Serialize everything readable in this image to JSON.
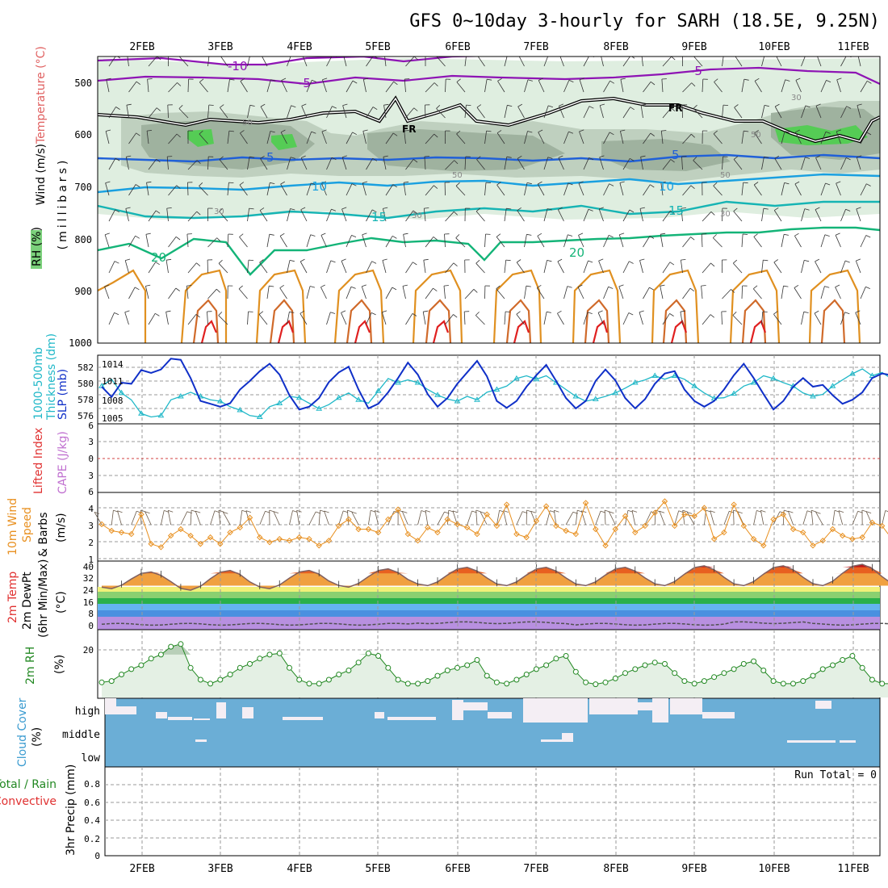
{
  "title": "GFS 0~10day 3-hourly for SARH (18.5E, 9.25N)",
  "date_labels": [
    "2FEB",
    "3FEB",
    "4FEB",
    "5FEB",
    "6FEB",
    "7FEB",
    "8FEB",
    "9FEB",
    "10FEB",
    "11FEB"
  ],
  "colors": {
    "grid": "#9a9a9a",
    "frame": "#000000",
    "rh_fill": "#dfeee0",
    "rh_dark": "#9fb29f",
    "rh_green": "#55cc55",
    "temp_purple": "#8e14b4",
    "temp_fr": "#000000",
    "temp_blue": "#2060d8",
    "temp_lblue": "#1aa0e0",
    "temp_teal": "#16b4b4",
    "temp_green": "#14b478",
    "temp_orange": "#e09020",
    "temp_red": "#e02020",
    "slp_line": "#1030c8",
    "thk_line": "#20b8c8",
    "li_zero": "#d04040",
    "wind_line": "#e89020",
    "rh2m_line": "#228822",
    "rh2m_fill": "#e4f0e4",
    "cloud_fill": "#6baed6",
    "cloud_clear": "#f4eef4"
  },
  "panels": {
    "profile": {
      "ylabel_1": "Wind (m/s)",
      "ylabel_2": "Temperature (°C)",
      "ylabel_3": "RH (%)",
      "ylabel_unit": "(millibars)",
      "yticks": [
        "500",
        "600",
        "700",
        "800",
        "900",
        "1000"
      ],
      "contour_labels": [
        "-10",
        "-5",
        "-5",
        "FR",
        "FR",
        "5",
        "5",
        "10",
        "10",
        "15",
        "15",
        "20",
        "20",
        "50",
        "50",
        "50",
        "50",
        "30",
        "30",
        "30",
        "30"
      ]
    },
    "slp": {
      "ylabel_1": "1000-500mb",
      "ylabel_2": "Thickness (dm)",
      "ylabel_3": "SLP (mb)",
      "left_ticks": [
        "582",
        "580",
        "578",
        "576"
      ],
      "right_ticks": [
        "1014",
        "1011",
        "1008",
        "1005"
      ]
    },
    "li": {
      "ylabel_1": "Lifted Index",
      "ylabel_2": "CAPE (J/kg)",
      "yticks": [
        "6",
        "3",
        "0",
        "3",
        "6"
      ]
    },
    "wind10": {
      "ylabel_1": "10m Wind",
      "ylabel_2": "Speed",
      "ylabel_3": "& Barbs",
      "ylabel_unit": "(m/s)",
      "yticks": [
        "4",
        "3",
        "2",
        "1"
      ]
    },
    "temp2m": {
      "ylabel_1": "2m Temp",
      "ylabel_2": "2m DewPt",
      "ylabel_3": "(6hr Min/Max)",
      "ylabel_unit": "(°C)",
      "yticks": [
        "40",
        "32",
        "24",
        "16",
        "8",
        "0"
      ]
    },
    "rh2m": {
      "ylabel_1": "2m RH",
      "ylabel_unit": "(%)",
      "yticks": [
        "20"
      ]
    },
    "cloud": {
      "ylabel_1": "Cloud Cover",
      "ylabel_unit": "(%)",
      "levels": [
        "high",
        "middle",
        "low"
      ]
    },
    "precip": {
      "ylabel_1": "Total / Rain",
      "ylabel_2": "Convective",
      "ylabel_3": "3hr Precip (mm)",
      "yticks": [
        "0.8",
        "0.6",
        "0.4",
        "0.2",
        "0"
      ],
      "run_total": "Run Total = 0"
    }
  },
  "chart_data": [
    {
      "type": "line",
      "name": "SLP and 1000-500mb thickness",
      "x_start": "1FEB 12Z",
      "x_step_hours": 3,
      "series": [
        {
          "name": "SLP (mb)",
          "values": [
            1010.5,
            1008.7,
            1011.2,
            1011.0,
            1013.4,
            1012.9,
            1013.5,
            1015.4,
            1015.2,
            1012.0,
            1008.0,
            1007.5,
            1007.0,
            1007.6,
            1010.0,
            1011.5,
            1013.2,
            1014.5,
            1012.6,
            1009.0,
            1006.5,
            1007.0,
            1008.5,
            1011.3,
            1013.0,
            1014.0,
            1010.0,
            1006.7,
            1007.5,
            1009.5,
            1012.0,
            1014.7,
            1012.6,
            1009.2,
            1007.0,
            1008.5,
            1011.0,
            1013.0,
            1015.0,
            1012.3,
            1008.0,
            1006.8,
            1008.0,
            1010.5,
            1012.5,
            1014.3,
            1011.5,
            1008.5,
            1006.7,
            1008.0,
            1011.5,
            1013.5,
            1011.6,
            1008.5,
            1006.7,
            1008.3,
            1011.0,
            1012.8,
            1013.2,
            1010.0,
            1008.0,
            1007.0,
            1008.0,
            1010.0,
            1012.5,
            1014.5,
            1012.0,
            1009.2,
            1006.5,
            1008.0,
            1010.5,
            1012.0,
            1010.5,
            1010.8,
            1009.0,
            1007.5,
            1008.2,
            1009.5,
            1012.0,
            1012.8,
            1012.5,
            1009.2,
            1008.0,
            1006.0,
            1008.0,
            1008.5,
            1010.0,
            1011.0,
            1010.5,
            1009.5,
            1008.7,
            1007.0,
            1005.5,
            1006.5,
            1007.5,
            1007.5,
            1007.0,
            1010.0
          ]
        },
        {
          "name": "Thickness (dm)",
          "values": [
            579.5,
            580.5,
            578.5,
            577.5,
            575.5,
            575.0,
            575.2,
            577.5,
            578.0,
            578.6,
            578.0,
            577.5,
            577.3,
            576.5,
            576.0,
            575.2,
            575.0,
            576.5,
            577.0,
            578.0,
            577.8,
            577.0,
            576.2,
            576.8,
            577.8,
            578.5,
            577.5,
            577.0,
            578.8,
            580.6,
            580.0,
            580.4,
            580.0,
            579.0,
            578.2,
            577.6,
            577.3,
            578.0,
            577.5,
            578.6,
            579.0,
            579.5,
            580.6,
            581.0,
            580.5,
            581.0,
            580.0,
            579.0,
            578.0,
            577.3,
            577.6,
            578.0,
            578.5,
            579.2,
            580.0,
            580.4,
            581.0,
            580.5,
            581.0,
            580.5,
            579.5,
            578.5,
            577.7,
            577.8,
            578.4,
            579.5,
            580.0,
            581.0,
            580.6,
            580.0,
            579.5,
            578.5,
            578.0,
            578.3,
            579.5,
            580.4,
            581.3,
            582.0,
            581.0,
            581.5,
            580.5,
            580.0,
            579.3,
            580.0,
            581.0,
            582.0,
            581.5,
            580.8,
            579.5,
            579.0,
            578.6,
            579.5,
            580.4,
            581.7,
            581.2,
            581.0,
            580.8,
            580.5,
            580.0
          ]
        }
      ]
    },
    {
      "type": "line",
      "name": "10m wind speed",
      "y_unit": "m/s",
      "ylim": [
        1,
        5
      ],
      "values": [
        3.1,
        2.7,
        2.6,
        2.5,
        3.7,
        1.9,
        1.7,
        2.4,
        2.8,
        2.4,
        1.9,
        2.3,
        1.9,
        2.6,
        2.9,
        3.5,
        2.3,
        2.0,
        2.2,
        2.1,
        2.3,
        2.2,
        1.8,
        2.1,
        3.0,
        3.4,
        2.8,
        2.8,
        2.6,
        3.4,
        4.0,
        2.5,
        2.1,
        2.9,
        2.6,
        3.4,
        3.1,
        2.9,
        2.5,
        3.7,
        3.0,
        4.3,
        2.5,
        2.3,
        3.3,
        4.2,
        3.0,
        2.7,
        2.5,
        4.4,
        2.8,
        1.8,
        2.8,
        3.6,
        2.6,
        3.0,
        3.8,
        4.5,
        3.0,
        3.7,
        3.6,
        4.1,
        2.2,
        2.6,
        4.3,
        3.0,
        2.2,
        1.8,
        3.4,
        3.7,
        2.8,
        2.6,
        1.8,
        2.1,
        2.8,
        2.4,
        2.2,
        2.3,
        3.2,
        3.0,
        2.2,
        1.9,
        2.3,
        1.5,
        2.8,
        2.5,
        2.1,
        2.5,
        2.9,
        2.8,
        1.1,
        2.2,
        2.5,
        2.3,
        2.0,
        2.3,
        2.5,
        2.2,
        2.6
      ]
    },
    {
      "type": "area",
      "name": "2m temperature",
      "y_unit": "°C",
      "ylim": [
        -4,
        40
      ],
      "daily_min": [
        22,
        21,
        22,
        23,
        24,
        24,
        24,
        24,
        24,
        24
      ],
      "daily_max": [
        33,
        34,
        34,
        35,
        36,
        36,
        36,
        37,
        37,
        38
      ],
      "dewpoint": [
        -1,
        -1,
        -1,
        -1,
        0,
        0,
        -1,
        -1,
        0,
        -1
      ]
    },
    {
      "type": "area",
      "name": "2m RH",
      "y_unit": "%",
      "values": [
        9.5,
        10.0,
        12.5,
        14.5,
        16.0,
        18.5,
        20.0,
        23.0,
        24.0,
        15.0,
        10.5,
        9.0,
        10.5,
        12.5,
        15.0,
        16.5,
        18.5,
        20.0,
        20.5,
        15.0,
        10.5,
        9.0,
        9.0,
        10.5,
        12.5,
        14.0,
        17.0,
        20.5,
        19.5,
        15.0,
        10.5,
        9.0,
        9.0,
        10.0,
        12.0,
        14.0,
        15.0,
        16.0,
        18.0,
        12.0,
        9.5,
        9.0,
        10.5,
        12.5,
        14.5,
        16.0,
        18.5,
        19.5,
        13.5,
        9.5,
        8.8,
        9.5,
        11.0,
        13.0,
        14.5,
        16.0,
        17.0,
        16.5,
        13.0,
        10.0,
        9.0,
        10.0,
        11.5,
        13.0,
        14.5,
        16.5,
        17.5,
        14.0,
        10.0,
        9.0,
        9.0,
        10.0,
        12.0,
        14.5,
        16.0,
        18.0,
        19.5,
        15.0,
        10.5,
        9.0,
        9.0,
        10.0,
        11.5,
        13.5,
        15.0,
        16.5,
        16.5,
        17.5,
        12.5,
        9.0,
        8.5,
        9.5,
        11.5,
        12.5,
        14.5,
        15.5,
        16.5,
        16.8
      ]
    },
    {
      "type": "bar",
      "name": "3hr precip",
      "y_unit": "mm",
      "ylim": [
        0,
        0.9
      ],
      "values": [
        0,
        0,
        0,
        0,
        0,
        0,
        0,
        0,
        0,
        0
      ]
    }
  ]
}
